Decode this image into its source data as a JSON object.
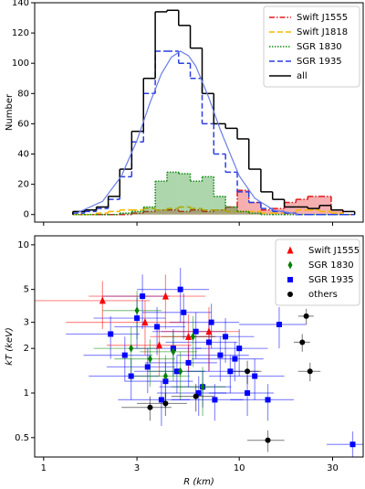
{
  "chart_data": [
    {
      "type": "histogram",
      "y_label": "Number",
      "xlim": [
        0.9,
        43
      ],
      "x_log": true,
      "ylim": [
        -5,
        140
      ],
      "yticks": [
        0,
        20,
        40,
        60,
        80,
        100,
        120,
        140
      ],
      "legend": "upper right",
      "bins": [
        1.41,
        1.62,
        1.86,
        2.14,
        2.45,
        2.82,
        3.24,
        3.72,
        4.27,
        4.9,
        5.62,
        6.46,
        7.41,
        8.51,
        9.77,
        11.2,
        12.9,
        14.8,
        17.0,
        19.5,
        22.4,
        25.7,
        29.5,
        33.9,
        38.9
      ],
      "series": [
        {
          "name": "Swift J1555",
          "color": "#e31a1c",
          "linestyle": "dashdot",
          "fill": true,
          "values": [
            0,
            0,
            0,
            0,
            0,
            1,
            2,
            3,
            3,
            2,
            3,
            2,
            3,
            5,
            16,
            8,
            3,
            4,
            8,
            10,
            12,
            12,
            3,
            0
          ]
        },
        {
          "name": "Swift J1818",
          "color": "#f5b800",
          "linestyle": "dashed",
          "fill": false,
          "values": [
            0,
            0,
            1,
            2,
            3,
            3,
            4,
            3,
            4,
            5,
            4,
            3,
            3,
            2,
            2,
            2,
            1,
            1,
            1,
            3,
            3,
            2,
            1,
            0
          ]
        },
        {
          "name": "SGR 1830",
          "color": "#138a13",
          "linestyle": "dotted",
          "fill": true,
          "values": [
            0,
            0,
            0,
            0,
            1,
            2,
            5,
            22,
            28,
            27,
            22,
            25,
            12,
            5,
            2,
            1,
            0,
            0,
            0,
            0,
            0,
            0,
            0,
            0
          ]
        },
        {
          "name": "SGR 1935",
          "color": "#2a3fe0",
          "linestyle": "dashed",
          "fill": false,
          "values": [
            1,
            2,
            4,
            10,
            25,
            48,
            80,
            108,
            108,
            100,
            90,
            60,
            40,
            28,
            15,
            8,
            4,
            2,
            1,
            0,
            0,
            0,
            0,
            0
          ]
        },
        {
          "name": "all",
          "color": "#000000",
          "linestyle": "solid",
          "fill": false,
          "values": [
            2,
            3,
            5,
            12,
            30,
            55,
            90,
            134,
            135,
            125,
            110,
            80,
            60,
            57,
            50,
            30,
            15,
            10,
            5,
            5,
            4,
            6,
            3,
            2
          ]
        }
      ],
      "fit": {
        "color": "#6a7de8",
        "x": [
          1.5,
          2,
          2.5,
          3,
          3.5,
          4,
          4.5,
          5,
          5.5,
          6,
          7,
          8,
          10,
          12,
          15,
          20
        ],
        "values": [
          1.4,
          8.7,
          25.5,
          49,
          74,
          93,
          104,
          108,
          105,
          98,
          77,
          56,
          25.5,
          10.8,
          2.9,
          0.3
        ]
      }
    },
    {
      "type": "scatter",
      "x_label": "R (km)",
      "y_label": "kT (keV)",
      "xlim": [
        0.9,
        43
      ],
      "x_log": true,
      "xticks": [
        1,
        3,
        10,
        30
      ],
      "ylim": [
        0.37,
        11.5
      ],
      "y_log": true,
      "yticks": [
        0.5,
        1,
        2,
        3,
        5,
        10
      ],
      "legend": "upper right",
      "series": [
        {
          "name": "Swift J1555",
          "color": "#ff0000",
          "marker": "triangle",
          "x": [
            2.0,
            3.3,
            4.2,
            5.5,
            7.0,
            3.9
          ],
          "values": [
            4.2,
            3.0,
            4.5,
            2.4,
            2.6,
            2.1
          ],
          "xerr": [
            1.5,
            2.0,
            2.5,
            2.0,
            3.0,
            1.8
          ],
          "yerr": [
            1.5,
            1.2,
            1.8,
            1.0,
            1.2,
            0.8
          ]
        },
        {
          "name": "SGR 1830",
          "color": "#008000",
          "marker": "diamond",
          "x": [
            2.8,
            3.5,
            4.2,
            5.0,
            5.8,
            6.5,
            3.0,
            4.6
          ],
          "values": [
            2.0,
            1.7,
            1.3,
            1.4,
            2.4,
            1.1,
            3.6,
            1.9
          ],
          "xerr": [
            1.0,
            1.2,
            1.4,
            1.6,
            1.8,
            2.0,
            1.0,
            1.5
          ],
          "yerr": [
            0.8,
            0.6,
            0.5,
            0.5,
            0.9,
            0.4,
            1.3,
            0.7
          ]
        },
        {
          "name": "SGR 1935",
          "color": "#0000ff",
          "marker": "square",
          "x": [
            2.2,
            2.6,
            3.0,
            3.4,
            3.8,
            4.2,
            4.6,
            5.0,
            5.5,
            6.0,
            6.5,
            7.0,
            7.5,
            8.0,
            9.0,
            10,
            11,
            12,
            14,
            16,
            3.2,
            4.0,
            5.2,
            6.2,
            7.2,
            8.5,
            2.8,
            4.8,
            9.5,
            38
          ],
          "values": [
            2.5,
            1.8,
            3.2,
            1.5,
            2.8,
            1.2,
            2.0,
            5.0,
            1.6,
            2.6,
            1.1,
            2.2,
            0.9,
            1.8,
            1.4,
            2.0,
            1.0,
            1.3,
            0.9,
            2.9,
            4.5,
            0.9,
            3.5,
            1.0,
            3.0,
            2.4,
            1.3,
            1.4,
            1.7,
            0.45
          ],
          "xerr": [
            0.9,
            1.0,
            1.2,
            1.3,
            1.5,
            1.6,
            1.8,
            2.0,
            2.2,
            2.4,
            2.6,
            2.8,
            3.0,
            3.2,
            3.6,
            4,
            4,
            5,
            5,
            6,
            1.2,
            1.6,
            2.0,
            2.4,
            2.8,
            3.4,
            1.1,
            1.9,
            3.8,
            10
          ],
          "yerr": [
            0.8,
            0.6,
            1.2,
            0.5,
            1.0,
            0.4,
            0.7,
            2.0,
            0.5,
            0.9,
            0.3,
            0.8,
            0.25,
            0.6,
            0.4,
            0.7,
            0.3,
            0.4,
            0.25,
            0.9,
            1.8,
            0.3,
            1.2,
            0.3,
            1.0,
            0.8,
            0.4,
            0.4,
            0.5,
            0.1
          ]
        },
        {
          "name": "others",
          "color": "#000000",
          "marker": "circle",
          "x": [
            22,
            21,
            23,
            11,
            14,
            6,
            3.5,
            4.2
          ],
          "values": [
            3.3,
            2.2,
            1.4,
            1.4,
            0.48,
            0.95,
            0.8,
            0.85
          ],
          "xerr": [
            2,
            2,
            3,
            2,
            3,
            1.5,
            1,
            1.2
          ],
          "yerr": [
            0.4,
            0.3,
            0.2,
            0.25,
            0.08,
            0.2,
            0.15,
            0.15
          ]
        }
      ]
    }
  ]
}
